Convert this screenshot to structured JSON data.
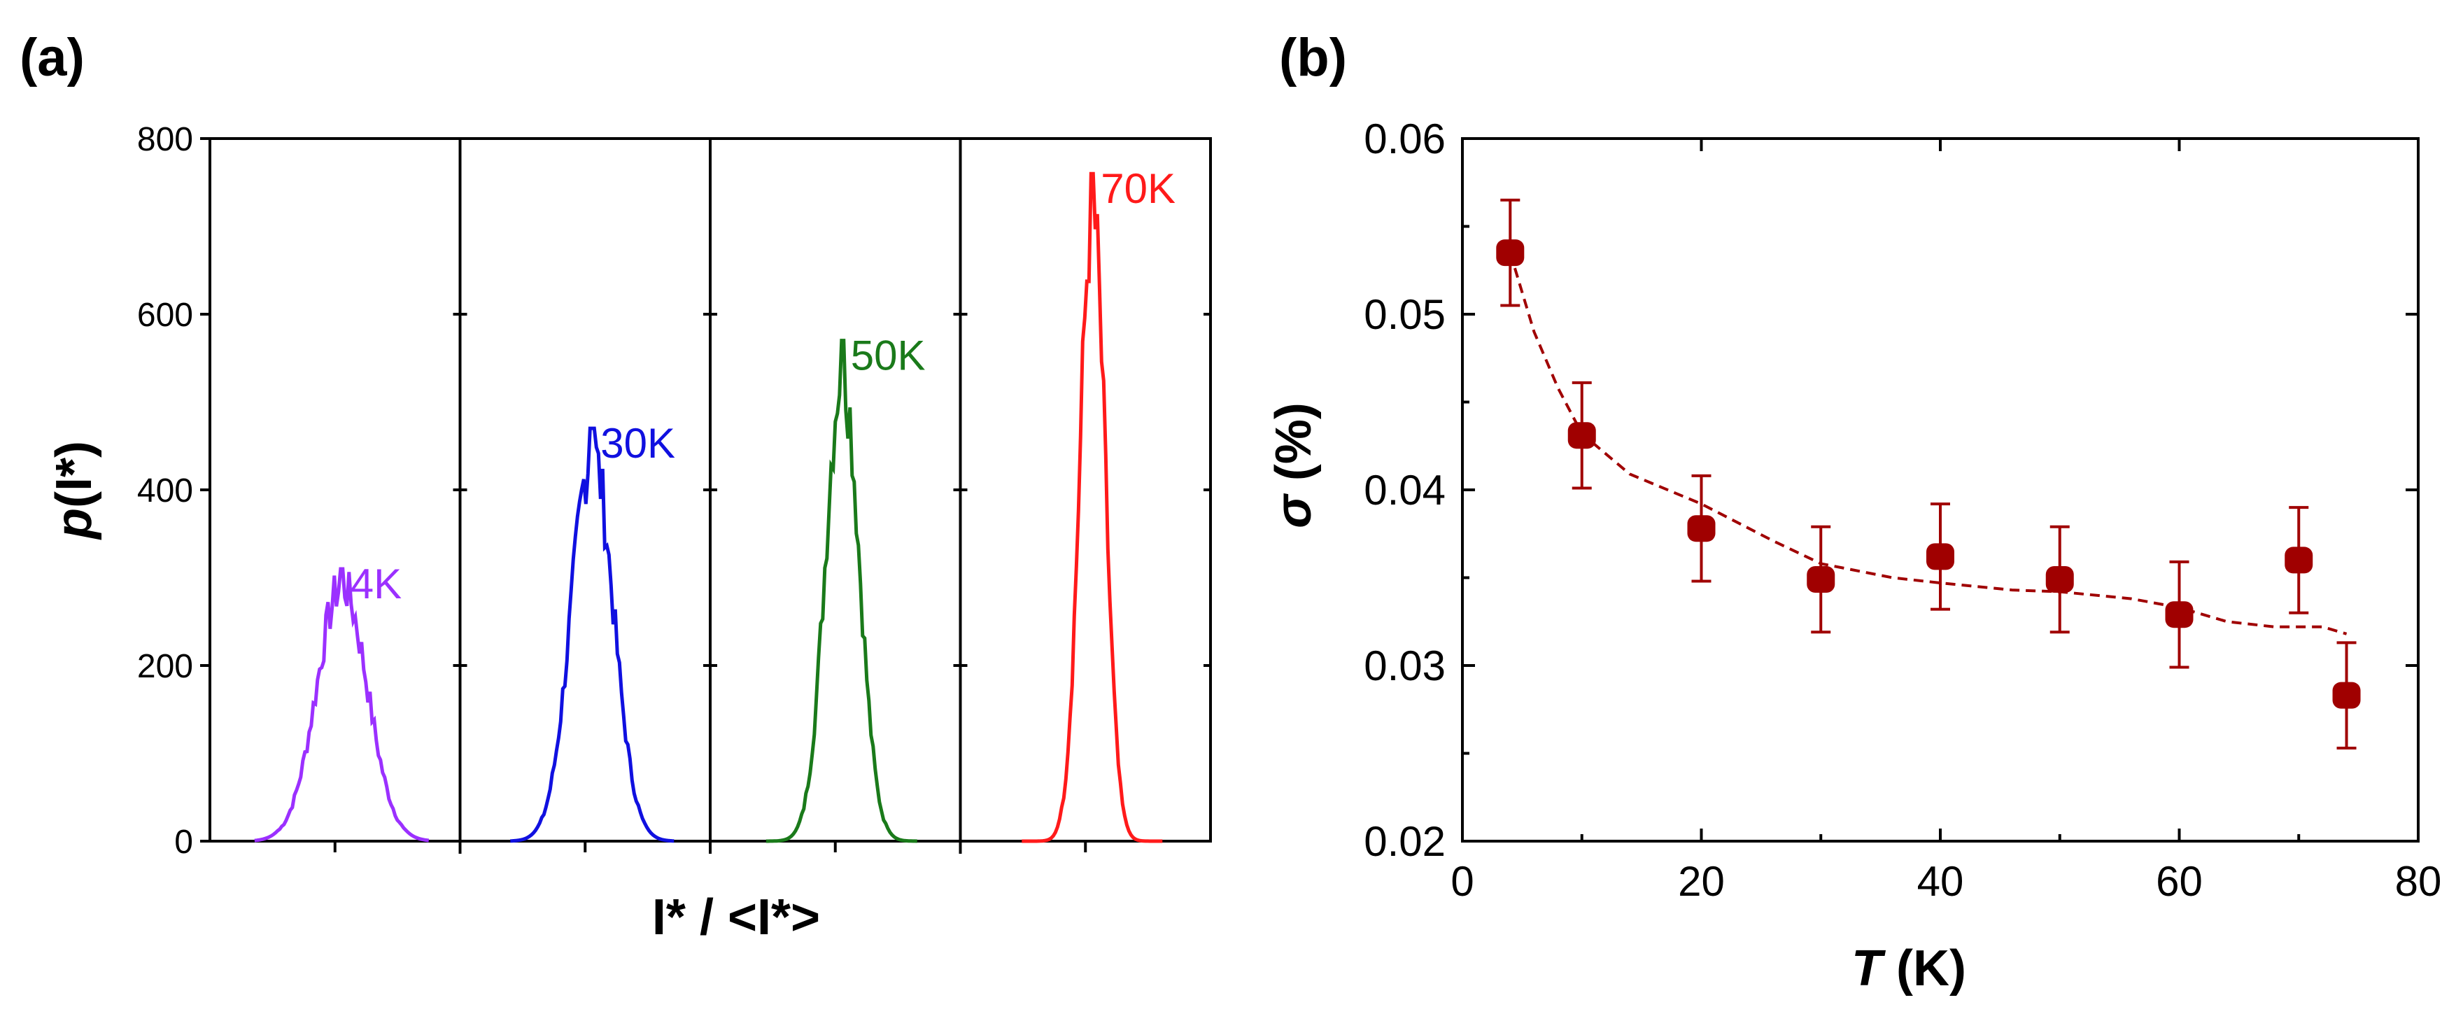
{
  "figure": {
    "panel_a_label": "(a)",
    "panel_b_label": "(b)"
  },
  "chart_data": [
    {
      "type": "line",
      "panel": "(a)",
      "xlabel": "I* / <I*>",
      "ylabel": "p(I*)",
      "ylim": [
        0,
        800
      ],
      "yticks": [
        "0",
        "200",
        "400",
        "600",
        "800"
      ],
      "subplots": [
        {
          "label": "4K",
          "color": "#9b30ff",
          "peak": 310
        },
        {
          "label": "30K",
          "color": "#1010e0",
          "peak": 470
        },
        {
          "label": "50K",
          "color": "#1a7a1a",
          "peak": 570
        },
        {
          "label": "70K",
          "color": "#ff1a1a",
          "peak": 760
        }
      ]
    },
    {
      "type": "scatter",
      "panel": "(b)",
      "xlabel": "T (K)",
      "ylabel": "σ (%)",
      "xlim": [
        0,
        80
      ],
      "ylim": [
        0.02,
        0.06
      ],
      "xticks": [
        "0",
        "20",
        "40",
        "60",
        "80"
      ],
      "yticks": [
        "0.02",
        "0.03",
        "0.04",
        "0.05",
        "0.06"
      ],
      "marker_color": "#a00000",
      "points": [
        {
          "x": 4,
          "y": 0.0535,
          "err": 0.003
        },
        {
          "x": 10,
          "y": 0.0431,
          "err": 0.003
        },
        {
          "x": 20,
          "y": 0.0378,
          "err": 0.003
        },
        {
          "x": 30,
          "y": 0.0349,
          "err": 0.003
        },
        {
          "x": 40,
          "y": 0.0362,
          "err": 0.003
        },
        {
          "x": 50,
          "y": 0.0349,
          "err": 0.003
        },
        {
          "x": 60,
          "y": 0.0329,
          "err": 0.003
        },
        {
          "x": 70,
          "y": 0.036,
          "err": 0.003
        },
        {
          "x": 74,
          "y": 0.0283,
          "err": 0.003
        }
      ],
      "fit": {
        "x": [
          4,
          6,
          8,
          10,
          14,
          20,
          26,
          30,
          36,
          40,
          46,
          50,
          56,
          60,
          64,
          68,
          72,
          74
        ],
        "y": [
          0.0535,
          0.049,
          0.0458,
          0.0432,
          0.0409,
          0.0392,
          0.0371,
          0.0358,
          0.035,
          0.0347,
          0.0343,
          0.0342,
          0.0338,
          0.0333,
          0.0325,
          0.0322,
          0.0322,
          0.0318
        ]
      }
    }
  ]
}
